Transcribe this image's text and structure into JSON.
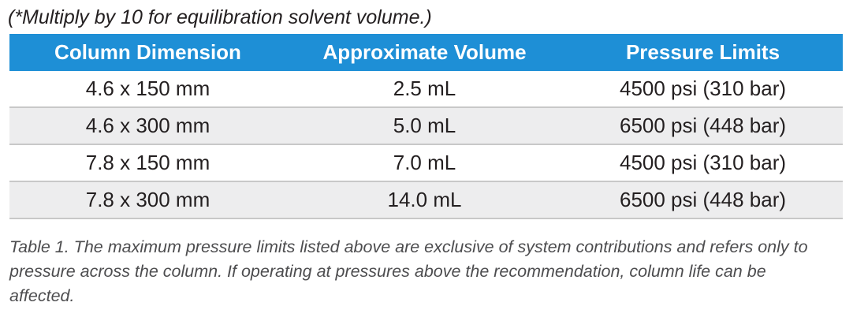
{
  "note": "(*Multiply by 10 for equilibration solvent volume.)",
  "table": {
    "headers": [
      "Column Dimension",
      "Approximate Volume",
      "Pressure Limits"
    ],
    "rows": [
      [
        "4.6 x 150 mm",
        "2.5 mL",
        "4500 psi (310 bar)"
      ],
      [
        "4.6 x 300 mm",
        "5.0 mL",
        "6500 psi (448 bar)"
      ],
      [
        "7.8 x 150 mm",
        "7.0 mL",
        "4500 psi (310 bar)"
      ],
      [
        "7.8 x 300 mm",
        "14.0 mL",
        "6500 psi (448 bar)"
      ]
    ]
  },
  "caption": "Table 1. The maximum pressure limits listed above are exclusive of system contributions and refers only to pressure across the column. If operating at pressures above the recommendation, column life can be affected.",
  "colors": {
    "header_bg": "#1e8fd6",
    "header_text": "#ffffff",
    "alt_row_bg": "#ededee",
    "row_divider": "#c8c8c8"
  }
}
